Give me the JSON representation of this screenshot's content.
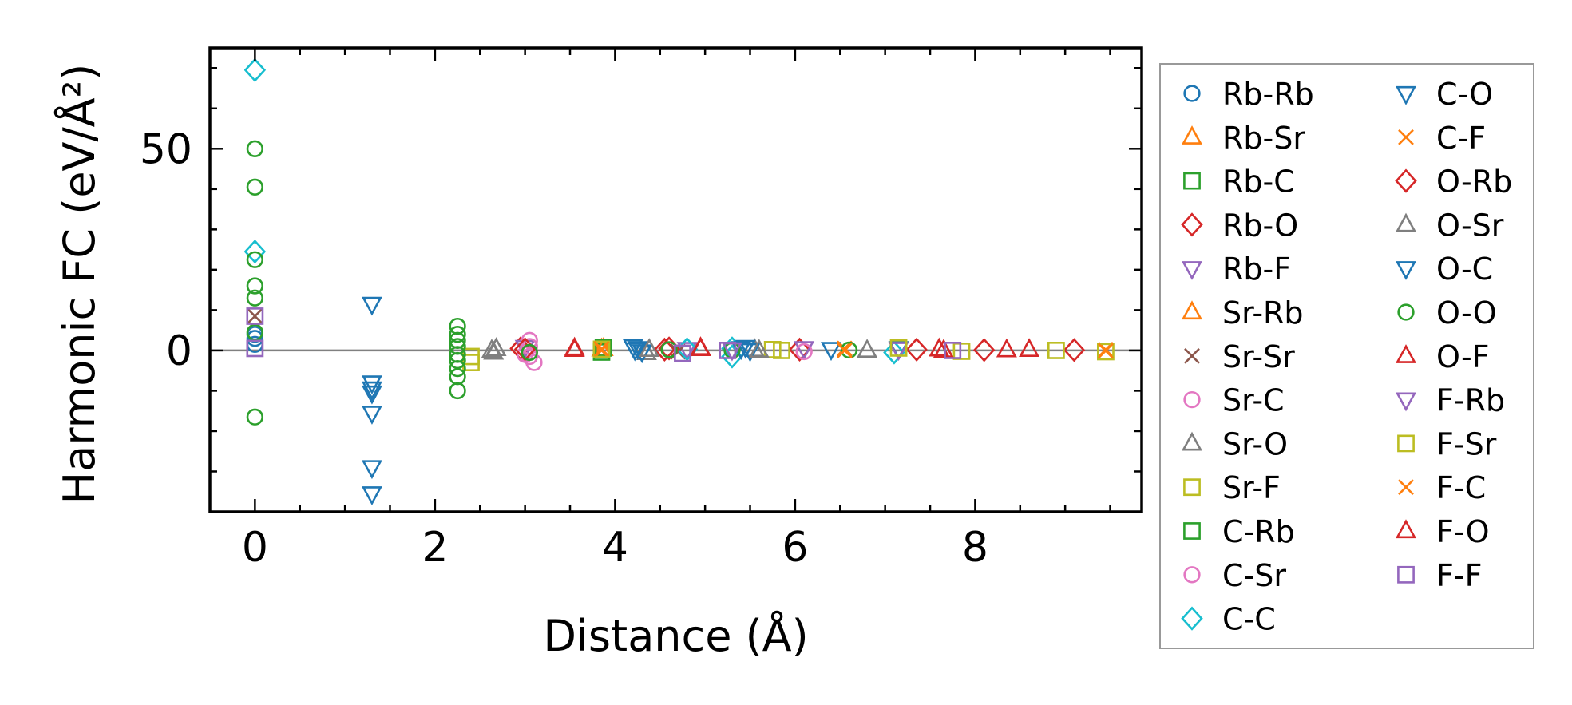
{
  "chart_data": {
    "type": "scatter",
    "title": "",
    "xlabel": "Distance (Å)",
    "ylabel": "Harmonic FC (eV/Å²)",
    "xlim": [
      -0.5,
      9.85
    ],
    "ylim": [
      -40,
      75
    ],
    "xticks": [
      0,
      2,
      4,
      6,
      8
    ],
    "yticks": [
      0,
      50
    ],
    "xtick_labels": [
      "0",
      "2",
      "4",
      "6",
      "8"
    ],
    "ytick_labels": [
      "0",
      "50"
    ],
    "zero_line": true,
    "grid": false,
    "legend_position": "outside-right",
    "legend_columns": 2,
    "series": [
      {
        "name": "Rb-Rb",
        "marker": "circle",
        "color": "#1f77b4",
        "points": [
          [
            0,
            1.5
          ],
          [
            0,
            3
          ],
          [
            0,
            4
          ]
        ]
      },
      {
        "name": "Rb-Sr",
        "marker": "triangle-up",
        "color": "#ff7f0e",
        "points": [
          [
            3.85,
            0.3
          ]
        ]
      },
      {
        "name": "Rb-C",
        "marker": "square",
        "color": "#2ca02c",
        "points": [
          [
            3.85,
            -0.4
          ]
        ]
      },
      {
        "name": "Rb-O",
        "marker": "diamond",
        "color": "#d62728",
        "points": [
          [
            2.95,
            0.5
          ],
          [
            4.55,
            0.2
          ],
          [
            6.05,
            0.2
          ],
          [
            8.1,
            0.1
          ]
        ]
      },
      {
        "name": "Rb-F",
        "marker": "triangle-down",
        "color": "#9467bd",
        "points": [
          [
            3.0,
            0.8
          ],
          [
            4.8,
            0.3
          ],
          [
            6.1,
            0.5
          ]
        ]
      },
      {
        "name": "Sr-Rb",
        "marker": "triangle-up",
        "color": "#ff7f0e",
        "points": [
          [
            3.87,
            0.4
          ]
        ]
      },
      {
        "name": "Sr-Sr",
        "marker": "x",
        "color": "#8c564b",
        "points": [
          [
            0,
            8.5
          ],
          [
            4.7,
            -0.3
          ],
          [
            6.55,
            0.1
          ]
        ]
      },
      {
        "name": "Sr-C",
        "marker": "circle",
        "color": "#e377c2",
        "points": [
          [
            3.05,
            -1.5
          ],
          [
            3.05,
            1.0
          ],
          [
            3.1,
            -3.0
          ],
          [
            3.05,
            2.5
          ],
          [
            6.1,
            -0.3
          ]
        ]
      },
      {
        "name": "Sr-O",
        "marker": "triangle-up",
        "color": "#7f7f7f",
        "points": [
          [
            2.65,
            -0.5
          ],
          [
            2.68,
            0.4
          ],
          [
            4.35,
            -0.6
          ],
          [
            5.55,
            0.2
          ],
          [
            6.8,
            0.0
          ]
        ]
      },
      {
        "name": "Sr-F",
        "marker": "square",
        "color": "#bcbd22",
        "points": [
          [
            2.4,
            -1.5
          ],
          [
            2.4,
            -3.0
          ],
          [
            5.75,
            0.2
          ],
          [
            7.85,
            -0.2
          ]
        ]
      },
      {
        "name": "C-Rb",
        "marker": "square",
        "color": "#2ca02c",
        "points": [
          [
            3.87,
            0.6
          ]
        ]
      },
      {
        "name": "C-Sr",
        "marker": "circle",
        "color": "#e377c2",
        "points": [
          [
            3.0,
            -1.0
          ]
        ]
      },
      {
        "name": "C-C",
        "marker": "diamond",
        "color": "#17becf",
        "points": [
          [
            0,
            69.5
          ],
          [
            0,
            24.5
          ],
          [
            4.8,
            0.3
          ],
          [
            5.3,
            0.5
          ],
          [
            5.3,
            -1.5
          ],
          [
            7.1,
            -0.5
          ]
        ]
      },
      {
        "name": "C-O",
        "marker": "triangle-down",
        "color": "#1f77b4",
        "points": [
          [
            1.3,
            11.5
          ],
          [
            1.3,
            -8.0
          ],
          [
            1.3,
            -9.5
          ],
          [
            1.3,
            -10.5
          ],
          [
            1.3,
            -15.5
          ],
          [
            1.3,
            -29.0
          ],
          [
            1.3,
            -35.5
          ],
          [
            4.2,
            1.0
          ],
          [
            4.25,
            0.5
          ],
          [
            4.3,
            -0.3
          ],
          [
            5.4,
            0.5
          ],
          [
            5.5,
            0.0
          ],
          [
            6.4,
            0.3
          ]
        ]
      },
      {
        "name": "C-F",
        "marker": "x",
        "color": "#ff7f0e",
        "points": [
          [
            3.85,
            0.0
          ],
          [
            6.55,
            0.5
          ],
          [
            9.45,
            0.2
          ]
        ]
      },
      {
        "name": "O-Rb",
        "marker": "diamond",
        "color": "#d62728",
        "points": [
          [
            3.0,
            0.3
          ],
          [
            4.6,
            0.5
          ],
          [
            7.35,
            0.2
          ],
          [
            9.1,
            0.1
          ]
        ]
      },
      {
        "name": "O-Sr",
        "marker": "triangle-up",
        "color": "#7f7f7f",
        "points": [
          [
            2.63,
            0.0
          ],
          [
            4.38,
            0.2
          ],
          [
            5.6,
            0.0
          ]
        ]
      },
      {
        "name": "O-C",
        "marker": "triangle-down",
        "color": "#1f77b4",
        "points": [
          [
            4.22,
            0.2
          ],
          [
            5.45,
            0.8
          ],
          [
            7.15,
            0.5
          ]
        ]
      },
      {
        "name": "O-O",
        "marker": "circle",
        "color": "#2ca02c",
        "points": [
          [
            0,
            50
          ],
          [
            0,
            40.5
          ],
          [
            0,
            22.5
          ],
          [
            0,
            16
          ],
          [
            0,
            13
          ],
          [
            0,
            4.5
          ],
          [
            0,
            -16.5
          ],
          [
            2.25,
            6.0
          ],
          [
            2.25,
            4.0
          ],
          [
            2.25,
            2.5
          ],
          [
            2.25,
            1.0
          ],
          [
            2.25,
            -1.0
          ],
          [
            2.25,
            -2.5
          ],
          [
            2.25,
            -4.5
          ],
          [
            2.25,
            -6.5
          ],
          [
            2.25,
            -10.0
          ],
          [
            3.05,
            -0.5
          ],
          [
            4.6,
            0.2
          ],
          [
            5.3,
            0.0
          ],
          [
            6.6,
            0.1
          ]
        ]
      },
      {
        "name": "O-F",
        "marker": "triangle-up",
        "color": "#d62728",
        "points": [
          [
            3.55,
            0.5
          ],
          [
            4.95,
            0.4
          ],
          [
            7.6,
            0.3
          ],
          [
            8.35,
            0.1
          ],
          [
            8.6,
            0.2
          ]
        ]
      },
      {
        "name": "F-Rb",
        "marker": "triangle-down",
        "color": "#9467bd",
        "points": [
          [
            5.3,
            0.2
          ],
          [
            7.15,
            0.3
          ]
        ]
      },
      {
        "name": "F-Sr",
        "marker": "square",
        "color": "#bcbd22",
        "points": [
          [
            3.85,
            0.3
          ],
          [
            5.85,
            0.0
          ],
          [
            7.15,
            0.6
          ],
          [
            8.9,
            0.0
          ],
          [
            9.45,
            -0.3
          ]
        ]
      },
      {
        "name": "F-C",
        "marker": "x",
        "color": "#ff7f0e",
        "points": [
          [
            3.85,
            0.4
          ],
          [
            6.55,
            0.0
          ],
          [
            9.45,
            -0.1
          ]
        ]
      },
      {
        "name": "F-O",
        "marker": "triangle-up",
        "color": "#d62728",
        "points": [
          [
            3.55,
            0.2
          ],
          [
            4.95,
            0.6
          ],
          [
            7.65,
            0.0
          ]
        ]
      },
      {
        "name": "F-F",
        "marker": "square",
        "color": "#9467bd",
        "points": [
          [
            0,
            8.5
          ],
          [
            0,
            0.5
          ],
          [
            4.75,
            -0.7
          ],
          [
            5.25,
            0.0
          ],
          [
            7.75,
            0.0
          ]
        ]
      }
    ]
  }
}
